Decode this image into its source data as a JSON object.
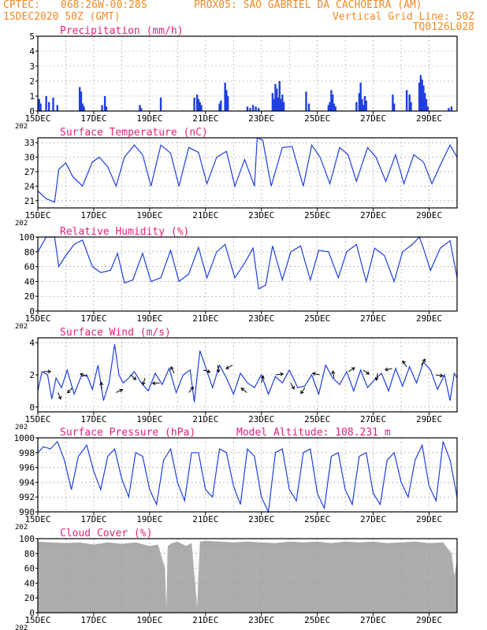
{
  "header": {
    "line1_left": "CPTEC:",
    "coords": "068:26W-00:28S",
    "station": "PROX05: SAO GABRIEL DA CACHOEIRA (AM)",
    "line2_left": "15DEC2020 50Z (GMT)",
    "grid_note": "Vertical Grid Line: 50Z",
    "model_code": "TQ0126L028"
  },
  "colors": {
    "header": "#f08a24",
    "title": "#e8207a",
    "line": "#1f3fe0",
    "bar": "#1f3fe0",
    "cloud": "#aaaaaa",
    "grid": "#999999"
  },
  "x_axis": {
    "ticks": [
      "15DEC",
      "17DEC",
      "19DEC",
      "21DEC",
      "23DEC",
      "25DEC",
      "27DEC",
      "29DEC"
    ],
    "tick_days": [
      15,
      17,
      19,
      21,
      23,
      25,
      27,
      29
    ],
    "day_range": [
      15,
      30
    ],
    "year_fragment": "202"
  },
  "chart_data": [
    {
      "type": "bar",
      "title": "Precipitation (mm/h)",
      "ylim": [
        0,
        5
      ],
      "yticks": [
        "0",
        "1",
        "2",
        "3",
        "4",
        "5"
      ],
      "ytick_values": [
        0,
        1,
        2,
        3,
        4,
        5
      ],
      "x_days": [
        15.05,
        15.1,
        15.3,
        15.4,
        15.55,
        15.7,
        16.5,
        16.55,
        16.6,
        16.65,
        17.3,
        17.4,
        17.45,
        18.65,
        18.7,
        19.4,
        20.6,
        20.7,
        20.75,
        20.8,
        20.85,
        21.5,
        21.55,
        21.7,
        21.75,
        21.8,
        22.5,
        22.6,
        22.7,
        22.8,
        22.9,
        23.4,
        23.45,
        23.5,
        23.55,
        23.6,
        23.65,
        23.7,
        23.75,
        23.8,
        24.6,
        24.7,
        25.4,
        25.45,
        25.5,
        25.55,
        25.6,
        25.65,
        26.4,
        26.5,
        26.55,
        26.6,
        26.65,
        26.7,
        26.75,
        27.7,
        27.75,
        28.2,
        28.3,
        28.35,
        28.65,
        28.7,
        28.75,
        28.8,
        28.85,
        28.9,
        28.95,
        29.7,
        29.8
      ],
      "values": [
        0.8,
        0.5,
        1.0,
        0.6,
        0.9,
        0.4,
        1.6,
        1.3,
        0.5,
        0.3,
        0.4,
        1.0,
        0.3,
        0.4,
        0.2,
        0.9,
        0.9,
        1.1,
        0.8,
        0.6,
        0.4,
        0.5,
        0.7,
        1.9,
        1.4,
        1.0,
        0.3,
        0.2,
        0.4,
        0.3,
        0.2,
        1.2,
        0.8,
        1.8,
        1.5,
        0.9,
        2.0,
        0.8,
        1.1,
        0.6,
        1.3,
        0.5,
        0.4,
        0.6,
        1.4,
        1.1,
        0.5,
        0.3,
        0.6,
        1.2,
        1.9,
        0.8,
        0.4,
        1.0,
        0.7,
        1.1,
        0.5,
        1.4,
        1.1,
        0.6,
        1.9,
        2.4,
        2.1,
        1.7,
        1.2,
        0.8,
        0.3,
        0.2,
        0.3
      ],
      "grid": true
    },
    {
      "type": "line",
      "title": "Surface Temperature (nC)",
      "ylim": [
        19.5,
        34
      ],
      "yticks": [
        "21",
        "24",
        "27",
        "30",
        "33"
      ],
      "ytick_values": [
        21,
        24,
        27,
        30,
        33
      ],
      "x_days": [
        15.0,
        15.3,
        15.6,
        15.75,
        16.0,
        16.25,
        16.6,
        16.95,
        17.2,
        17.5,
        17.8,
        18.1,
        18.45,
        18.75,
        19.05,
        19.4,
        19.75,
        20.05,
        20.4,
        20.75,
        21.05,
        21.4,
        21.75,
        22.05,
        22.4,
        22.75,
        22.85,
        23.05,
        23.35,
        23.75,
        24.1,
        24.5,
        24.8,
        25.1,
        25.45,
        25.8,
        26.1,
        26.4,
        26.8,
        27.1,
        27.45,
        27.8,
        28.1,
        28.45,
        28.8,
        29.1,
        29.45,
        29.75,
        30.0
      ],
      "values": [
        23.0,
        21.4,
        20.7,
        27.5,
        28.8,
        26.0,
        24.0,
        29.0,
        30.0,
        28.0,
        24.0,
        30.0,
        32.5,
        30.5,
        24.0,
        32.5,
        30.8,
        24.0,
        32.0,
        31.0,
        24.5,
        30.0,
        31.2,
        24.0,
        29.5,
        24.0,
        34.0,
        33.5,
        24.0,
        32.0,
        32.2,
        24.0,
        32.5,
        30.0,
        24.5,
        32.0,
        30.5,
        25.0,
        32.0,
        30.0,
        25.0,
        30.5,
        24.5,
        30.5,
        29.0,
        24.5,
        29.0,
        32.5,
        30.0
      ],
      "grid": true
    },
    {
      "type": "line",
      "title": "Relative Humidity (%)",
      "ylim": [
        0,
        100
      ],
      "yticks": [
        "0",
        "20",
        "40",
        "60",
        "80",
        "100"
      ],
      "ytick_values": [
        0,
        20,
        40,
        60,
        80,
        100
      ],
      "x_days": [
        15.0,
        15.3,
        15.6,
        15.75,
        16.0,
        16.3,
        16.6,
        16.95,
        17.25,
        17.6,
        17.85,
        18.1,
        18.4,
        18.75,
        19.05,
        19.4,
        19.75,
        20.05,
        20.4,
        20.75,
        21.05,
        21.4,
        21.7,
        22.05,
        22.4,
        22.7,
        22.9,
        23.15,
        23.4,
        23.75,
        24.05,
        24.4,
        24.75,
        25.05,
        25.4,
        25.75,
        26.05,
        26.4,
        26.75,
        27.05,
        27.4,
        27.75,
        28.05,
        28.4,
        28.65,
        28.75,
        29.05,
        29.4,
        29.75,
        30.0
      ],
      "values": [
        80.0,
        100.0,
        100.0,
        60.0,
        75.0,
        90.0,
        96.0,
        60.0,
        52.0,
        55.0,
        78.0,
        38.0,
        42.0,
        78.0,
        40.0,
        45.0,
        82.0,
        40.0,
        50.0,
        86.0,
        45.0,
        80.0,
        90.0,
        45.0,
        65.0,
        85.0,
        30.0,
        35.0,
        88.0,
        42.0,
        80.0,
        88.0,
        42.0,
        82.0,
        80.0,
        45.0,
        80.0,
        90.0,
        40.0,
        85.0,
        75.0,
        40.0,
        80.0,
        90.0,
        100.0,
        90.0,
        55.0,
        85.0,
        95.0,
        45.0
      ],
      "grid": true
    },
    {
      "type": "line",
      "title": "Surface Wind (m/s)",
      "ylim": [
        -0.3,
        4.3
      ],
      "yticks": [
        "0",
        "2",
        "4"
      ],
      "ytick_values": [
        0,
        2,
        4
      ],
      "x_days": [
        15.0,
        15.15,
        15.35,
        15.5,
        15.65,
        15.85,
        16.05,
        16.3,
        16.55,
        16.75,
        16.95,
        17.15,
        17.35,
        17.55,
        17.75,
        17.9,
        18.05,
        18.25,
        18.45,
        18.7,
        18.95,
        19.2,
        19.45,
        19.7,
        19.95,
        20.2,
        20.45,
        20.6,
        20.8,
        21.0,
        21.25,
        21.5,
        21.75,
        22.0,
        22.25,
        22.5,
        22.75,
        23.0,
        23.25,
        23.5,
        23.75,
        24.0,
        24.3,
        24.55,
        24.8,
        25.05,
        25.3,
        25.55,
        25.8,
        26.05,
        26.3,
        26.55,
        26.8,
        27.05,
        27.3,
        27.55,
        27.8,
        28.05,
        28.3,
        28.55,
        28.8,
        29.05,
        29.3,
        29.55,
        29.75,
        29.9,
        30.0
      ],
      "values": [
        1.0,
        2.2,
        2.0,
        0.5,
        1.8,
        1.2,
        2.3,
        0.8,
        1.9,
        2.0,
        1.1,
        2.6,
        0.4,
        1.5,
        3.9,
        2.0,
        1.5,
        1.8,
        2.2,
        1.5,
        1.0,
        2.1,
        1.4,
        2.4,
        0.9,
        2.0,
        2.3,
        0.3,
        3.5,
        2.5,
        1.2,
        2.6,
        1.8,
        0.8,
        2.1,
        1.5,
        1.2,
        2.0,
        0.8,
        1.9,
        1.5,
        2.3,
        1.2,
        1.3,
        2.0,
        0.8,
        2.6,
        1.8,
        1.4,
        2.2,
        1.0,
        2.3,
        1.2,
        1.7,
        2.1,
        1.0,
        2.4,
        1.3,
        2.5,
        1.5,
        2.8,
        2.3,
        1.1,
        2.0,
        0.4,
        2.1,
        1.8
      ],
      "grid": true
    },
    {
      "type": "line",
      "title": "Surface Pressure (hPa)",
      "annotation": "Model Altitude: 108.231 m",
      "ylim": [
        990,
        1000
      ],
      "yticks": [
        "990",
        "992",
        "994",
        "996",
        "998",
        "1000"
      ],
      "ytick_values": [
        990,
        992,
        994,
        996,
        998,
        1000
      ],
      "x_days": [
        15.0,
        15.2,
        15.45,
        15.7,
        15.95,
        16.2,
        16.45,
        16.75,
        17.0,
        17.25,
        17.5,
        17.75,
        18.0,
        18.25,
        18.5,
        18.75,
        19.0,
        19.25,
        19.5,
        19.75,
        20.0,
        20.25,
        20.5,
        20.75,
        21.0,
        21.25,
        21.5,
        21.75,
        22.0,
        22.25,
        22.5,
        22.75,
        23.0,
        23.25,
        23.5,
        23.75,
        24.0,
        24.25,
        24.5,
        24.75,
        25.0,
        25.25,
        25.5,
        25.75,
        26.0,
        26.25,
        26.5,
        26.75,
        27.0,
        27.25,
        27.5,
        27.75,
        28.0,
        28.25,
        28.5,
        28.75,
        29.0,
        29.25,
        29.5,
        29.75,
        30.0
      ],
      "values": [
        998.0,
        998.8,
        998.5,
        999.5,
        997.0,
        993.0,
        997.5,
        999.0,
        995.5,
        993.0,
        997.5,
        998.5,
        994.5,
        992.0,
        998.0,
        997.5,
        993.0,
        991.0,
        997.0,
        998.5,
        994.0,
        991.5,
        998.0,
        998.0,
        993.0,
        992.0,
        998.5,
        998.0,
        993.5,
        991.0,
        998.5,
        997.5,
        992.0,
        990.0,
        998.0,
        998.5,
        993.0,
        991.5,
        998.0,
        998.5,
        992.5,
        990.5,
        997.5,
        998.0,
        993.0,
        991.0,
        997.5,
        998.0,
        992.5,
        991.0,
        997.0,
        998.0,
        994.0,
        992.0,
        997.0,
        999.0,
        993.5,
        991.5,
        999.5,
        997.0,
        992.0
      ],
      "grid": true
    },
    {
      "type": "area",
      "title": "Cloud Cover (%)",
      "ylim": [
        0,
        100
      ],
      "yticks": [
        "0",
        "20",
        "40",
        "60",
        "80",
        "100"
      ],
      "ytick_values": [
        0,
        20,
        40,
        60,
        80,
        100
      ],
      "x_days": [
        15.0,
        15.5,
        16.0,
        16.5,
        17.0,
        17.5,
        18.0,
        18.5,
        19.0,
        19.3,
        19.55,
        19.6,
        19.65,
        19.8,
        20.0,
        20.3,
        20.5,
        20.7,
        20.8,
        21.0,
        21.5,
        22.0,
        22.5,
        23.0,
        23.5,
        24.0,
        24.5,
        25.0,
        25.5,
        26.0,
        26.5,
        27.0,
        27.5,
        28.0,
        28.5,
        29.0,
        29.5,
        29.8,
        29.9,
        30.0
      ],
      "values": [
        96.0,
        95.0,
        94.0,
        95.0,
        92.0,
        95.0,
        93.0,
        95.0,
        90.0,
        92.0,
        60.0,
        5.0,
        90.0,
        94.0,
        96.0,
        90.0,
        94.0,
        8.0,
        96.0,
        97.0,
        96.0,
        95.0,
        96.0,
        95.0,
        94.0,
        96.0,
        95.0,
        96.0,
        94.0,
        96.0,
        95.0,
        96.0,
        94.0,
        95.0,
        96.0,
        94.0,
        95.0,
        80.0,
        50.0,
        70.0
      ],
      "grid": true
    }
  ]
}
